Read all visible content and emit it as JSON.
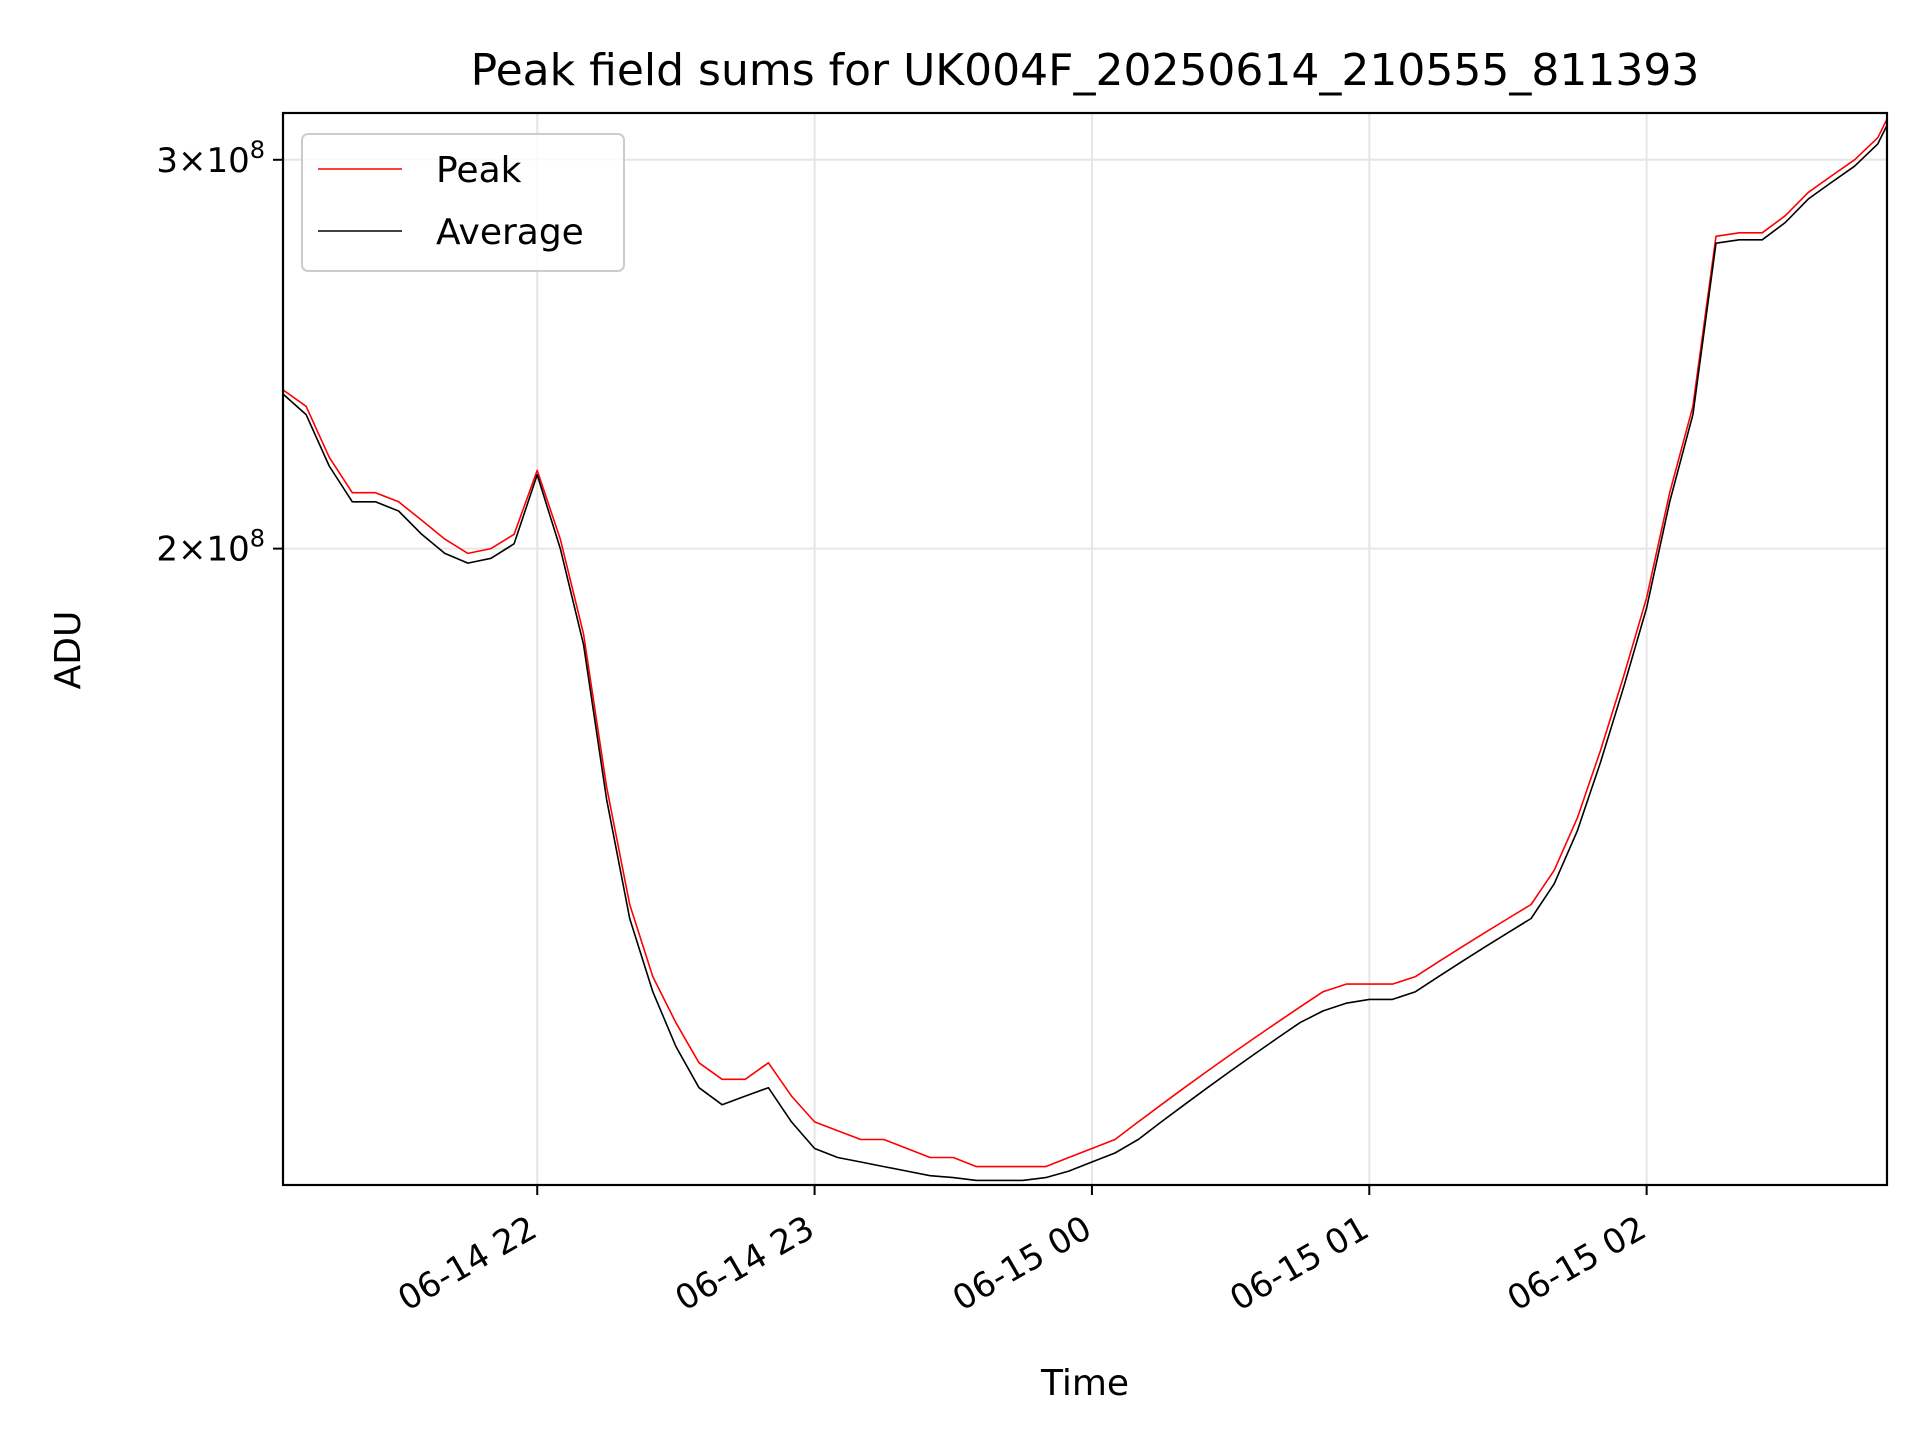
{
  "chart_data": {
    "type": "line",
    "title": "Peak field sums for UK004F_20250614_210555_811393",
    "xlabel": "Time",
    "ylabel": "ADU",
    "y_scale": "log",
    "xlim": [
      "2025-06-14 21:05",
      "2025-06-15 02:52"
    ],
    "ylim": [
      103000000,
      315000000
    ],
    "x_ticks": [
      {
        "value": "2025-06-14 22:00",
        "label": "06-14 22"
      },
      {
        "value": "2025-06-14 23:00",
        "label": "06-14 23"
      },
      {
        "value": "2025-06-15 00:00",
        "label": "06-15 00"
      },
      {
        "value": "2025-06-15 01:00",
        "label": "06-15 01"
      },
      {
        "value": "2025-06-15 02:00",
        "label": "06-15 02"
      }
    ],
    "y_ticks": [
      {
        "value": 200000000,
        "mantissa": "2",
        "label_base": "10",
        "label_exp": "8"
      },
      {
        "value": 300000000,
        "mantissa": "3",
        "label_base": "10",
        "label_exp": "8"
      }
    ],
    "grid": true,
    "legend_position": "top-left",
    "series": [
      {
        "name": "Peak",
        "color": "#ff0000",
        "x": [
          "2025-06-14 21:05",
          "2025-06-14 21:10",
          "2025-06-14 21:15",
          "2025-06-14 21:20",
          "2025-06-14 21:25",
          "2025-06-14 21:30",
          "2025-06-14 21:35",
          "2025-06-14 21:40",
          "2025-06-14 21:45",
          "2025-06-14 21:50",
          "2025-06-14 21:55",
          "2025-06-14 22:00",
          "2025-06-14 22:05",
          "2025-06-14 22:10",
          "2025-06-14 22:15",
          "2025-06-14 22:20",
          "2025-06-14 22:25",
          "2025-06-14 22:30",
          "2025-06-14 22:35",
          "2025-06-14 22:40",
          "2025-06-14 22:45",
          "2025-06-14 22:50",
          "2025-06-14 22:55",
          "2025-06-14 23:00",
          "2025-06-14 23:05",
          "2025-06-14 23:10",
          "2025-06-14 23:15",
          "2025-06-14 23:20",
          "2025-06-14 23:25",
          "2025-06-14 23:30",
          "2025-06-14 23:35",
          "2025-06-14 23:40",
          "2025-06-14 23:45",
          "2025-06-14 23:50",
          "2025-06-14 23:55",
          "2025-06-15 00:00",
          "2025-06-15 00:05",
          "2025-06-15 00:10",
          "2025-06-15 00:15",
          "2025-06-15 00:20",
          "2025-06-15 00:25",
          "2025-06-15 00:30",
          "2025-06-15 00:35",
          "2025-06-15 00:40",
          "2025-06-15 00:45",
          "2025-06-15 00:50",
          "2025-06-15 00:55",
          "2025-06-15 01:00",
          "2025-06-15 01:05",
          "2025-06-15 01:10",
          "2025-06-15 01:15",
          "2025-06-15 01:20",
          "2025-06-15 01:25",
          "2025-06-15 01:30",
          "2025-06-15 01:35",
          "2025-06-15 01:40",
          "2025-06-15 01:45",
          "2025-06-15 01:50",
          "2025-06-15 01:55",
          "2025-06-15 02:00",
          "2025-06-15 02:05",
          "2025-06-15 02:10",
          "2025-06-15 02:15",
          "2025-06-15 02:20",
          "2025-06-15 02:25",
          "2025-06-15 02:30",
          "2025-06-15 02:35",
          "2025-06-15 02:40",
          "2025-06-15 02:45",
          "2025-06-15 02:50",
          "2025-06-15 02:52"
        ],
        "y": [
          236000000,
          232000000,
          220000000,
          212000000,
          212000000,
          210000000,
          206000000,
          202000000,
          199000000,
          200000000,
          203000000,
          217000000,
          202000000,
          183000000,
          156000000,
          138000000,
          128000000,
          122000000,
          117000000,
          115000000,
          115000000,
          117000000,
          113000000,
          110000000,
          109000000,
          108000000,
          108000000,
          107000000,
          106000000,
          106000000,
          105000000,
          105000000,
          105000000,
          105000000,
          106000000,
          107000000,
          108000000,
          110000000,
          112000000,
          114000000,
          116000000,
          118000000,
          120000000,
          122000000,
          124000000,
          126000000,
          127000000,
          127000000,
          127000000,
          128000000,
          130000000,
          132000000,
          134000000,
          136000000,
          138000000,
          143000000,
          151000000,
          162000000,
          175000000,
          190000000,
          212000000,
          232000000,
          277000000,
          278000000,
          278000000,
          283000000,
          290000000,
          295000000,
          300000000,
          307000000,
          313000000
        ]
      },
      {
        "name": "Average",
        "color": "#000000",
        "x": [
          "2025-06-14 21:05",
          "2025-06-14 21:10",
          "2025-06-14 21:15",
          "2025-06-14 21:20",
          "2025-06-14 21:25",
          "2025-06-14 21:30",
          "2025-06-14 21:35",
          "2025-06-14 21:40",
          "2025-06-14 21:45",
          "2025-06-14 21:50",
          "2025-06-14 21:55",
          "2025-06-14 22:00",
          "2025-06-14 22:05",
          "2025-06-14 22:10",
          "2025-06-14 22:15",
          "2025-06-14 22:20",
          "2025-06-14 22:25",
          "2025-06-14 22:30",
          "2025-06-14 22:35",
          "2025-06-14 22:40",
          "2025-06-14 22:45",
          "2025-06-14 22:50",
          "2025-06-14 22:55",
          "2025-06-14 23:00",
          "2025-06-14 23:05",
          "2025-06-14 23:10",
          "2025-06-14 23:15",
          "2025-06-14 23:20",
          "2025-06-14 23:25",
          "2025-06-14 23:30",
          "2025-06-14 23:35",
          "2025-06-14 23:40",
          "2025-06-14 23:45",
          "2025-06-14 23:50",
          "2025-06-14 23:55",
          "2025-06-15 00:00",
          "2025-06-15 00:05",
          "2025-06-15 00:10",
          "2025-06-15 00:15",
          "2025-06-15 00:20",
          "2025-06-15 00:25",
          "2025-06-15 00:30",
          "2025-06-15 00:35",
          "2025-06-15 00:40",
          "2025-06-15 00:45",
          "2025-06-15 00:50",
          "2025-06-15 00:55",
          "2025-06-15 01:00",
          "2025-06-15 01:05",
          "2025-06-15 01:10",
          "2025-06-15 01:15",
          "2025-06-15 01:20",
          "2025-06-15 01:25",
          "2025-06-15 01:30",
          "2025-06-15 01:35",
          "2025-06-15 01:40",
          "2025-06-15 01:45",
          "2025-06-15 01:50",
          "2025-06-15 01:55",
          "2025-06-15 02:00",
          "2025-06-15 02:05",
          "2025-06-15 02:10",
          "2025-06-15 02:15",
          "2025-06-15 02:20",
          "2025-06-15 02:25",
          "2025-06-15 02:30",
          "2025-06-15 02:35",
          "2025-06-15 02:40",
          "2025-06-15 02:45",
          "2025-06-15 02:50",
          "2025-06-15 02:52"
        ],
        "y": [
          235000000,
          230000000,
          218000000,
          210000000,
          210000000,
          208000000,
          203000000,
          199000000,
          197000000,
          198000000,
          201000000,
          216000000,
          200000000,
          181000000,
          154000000,
          136000000,
          126000000,
          119000000,
          114000000,
          112000000,
          113000000,
          114000000,
          110000000,
          107000000,
          106000000,
          105500000,
          105000000,
          104500000,
          104000000,
          103800000,
          103500000,
          103500000,
          103500000,
          103800000,
          104500000,
          105500000,
          106500000,
          108000000,
          110000000,
          112000000,
          114000000,
          116000000,
          118000000,
          120000000,
          122000000,
          123500000,
          124500000,
          125000000,
          125000000,
          126000000,
          128000000,
          130000000,
          132000000,
          134000000,
          136000000,
          141000000,
          149000000,
          160000000,
          173000000,
          188000000,
          210000000,
          230000000,
          275000000,
          276000000,
          276000000,
          281000000,
          288000000,
          293000000,
          298000000,
          305000000,
          311000000
        ]
      }
    ]
  }
}
